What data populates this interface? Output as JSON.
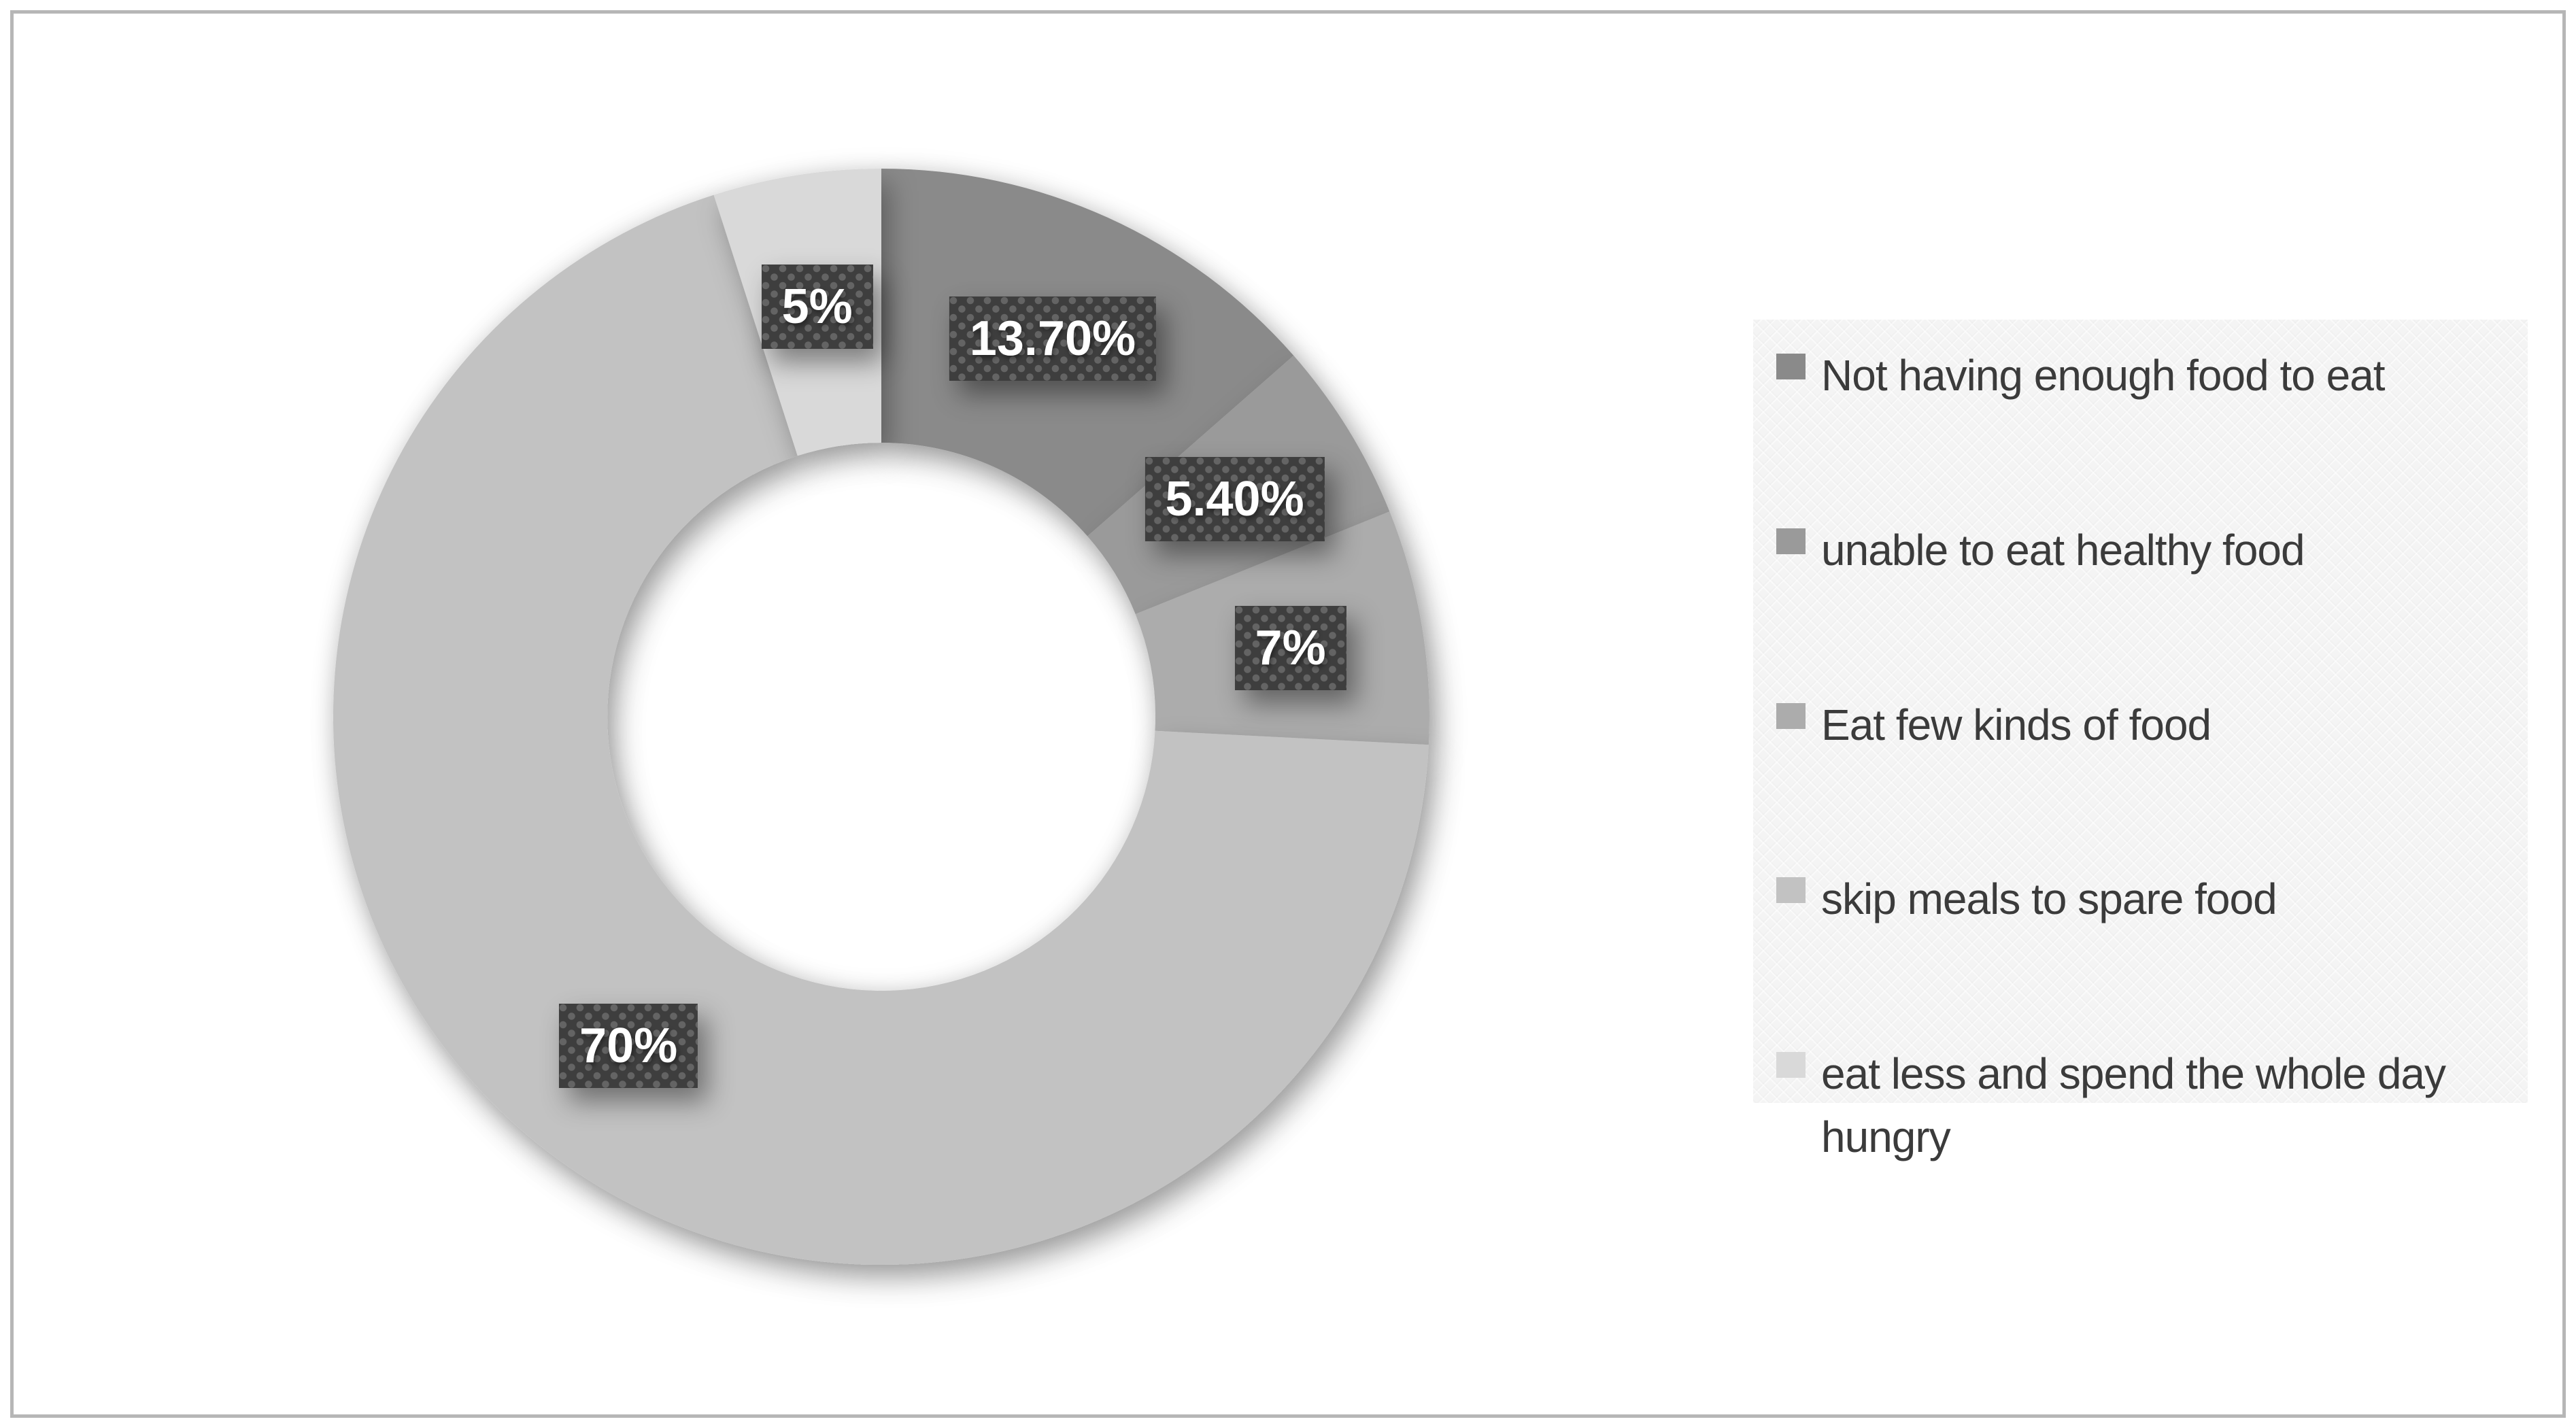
{
  "chart_data": {
    "type": "pie",
    "subtype": "doughnut",
    "hole_ratio": 0.5,
    "start_angle_deg": 0,
    "direction": "clockwise",
    "legend_position": "right",
    "values": [
      13.7,
      5.4,
      7,
      70,
      5
    ],
    "data_labels": [
      "13.70%",
      "5.40%",
      "7%",
      "70%",
      "5%"
    ],
    "legend": [
      "Not having enough food to eat",
      "unable to eat healthy food",
      "Eat few kinds of food",
      "skip meals to spare food",
      "eat less and spend the whole day hungry"
    ],
    "colors": [
      "#8a8a8a",
      "#9a9a9a",
      "#acacac",
      "#c2c2c2",
      "#d9d9d9"
    ],
    "label_box": {
      "background": "#3e3e3e",
      "dot_color": "#646464",
      "text_color": "#ffffff"
    },
    "frame_border_color": "#b6b6b6",
    "legend_background": "#f4f4f4"
  }
}
